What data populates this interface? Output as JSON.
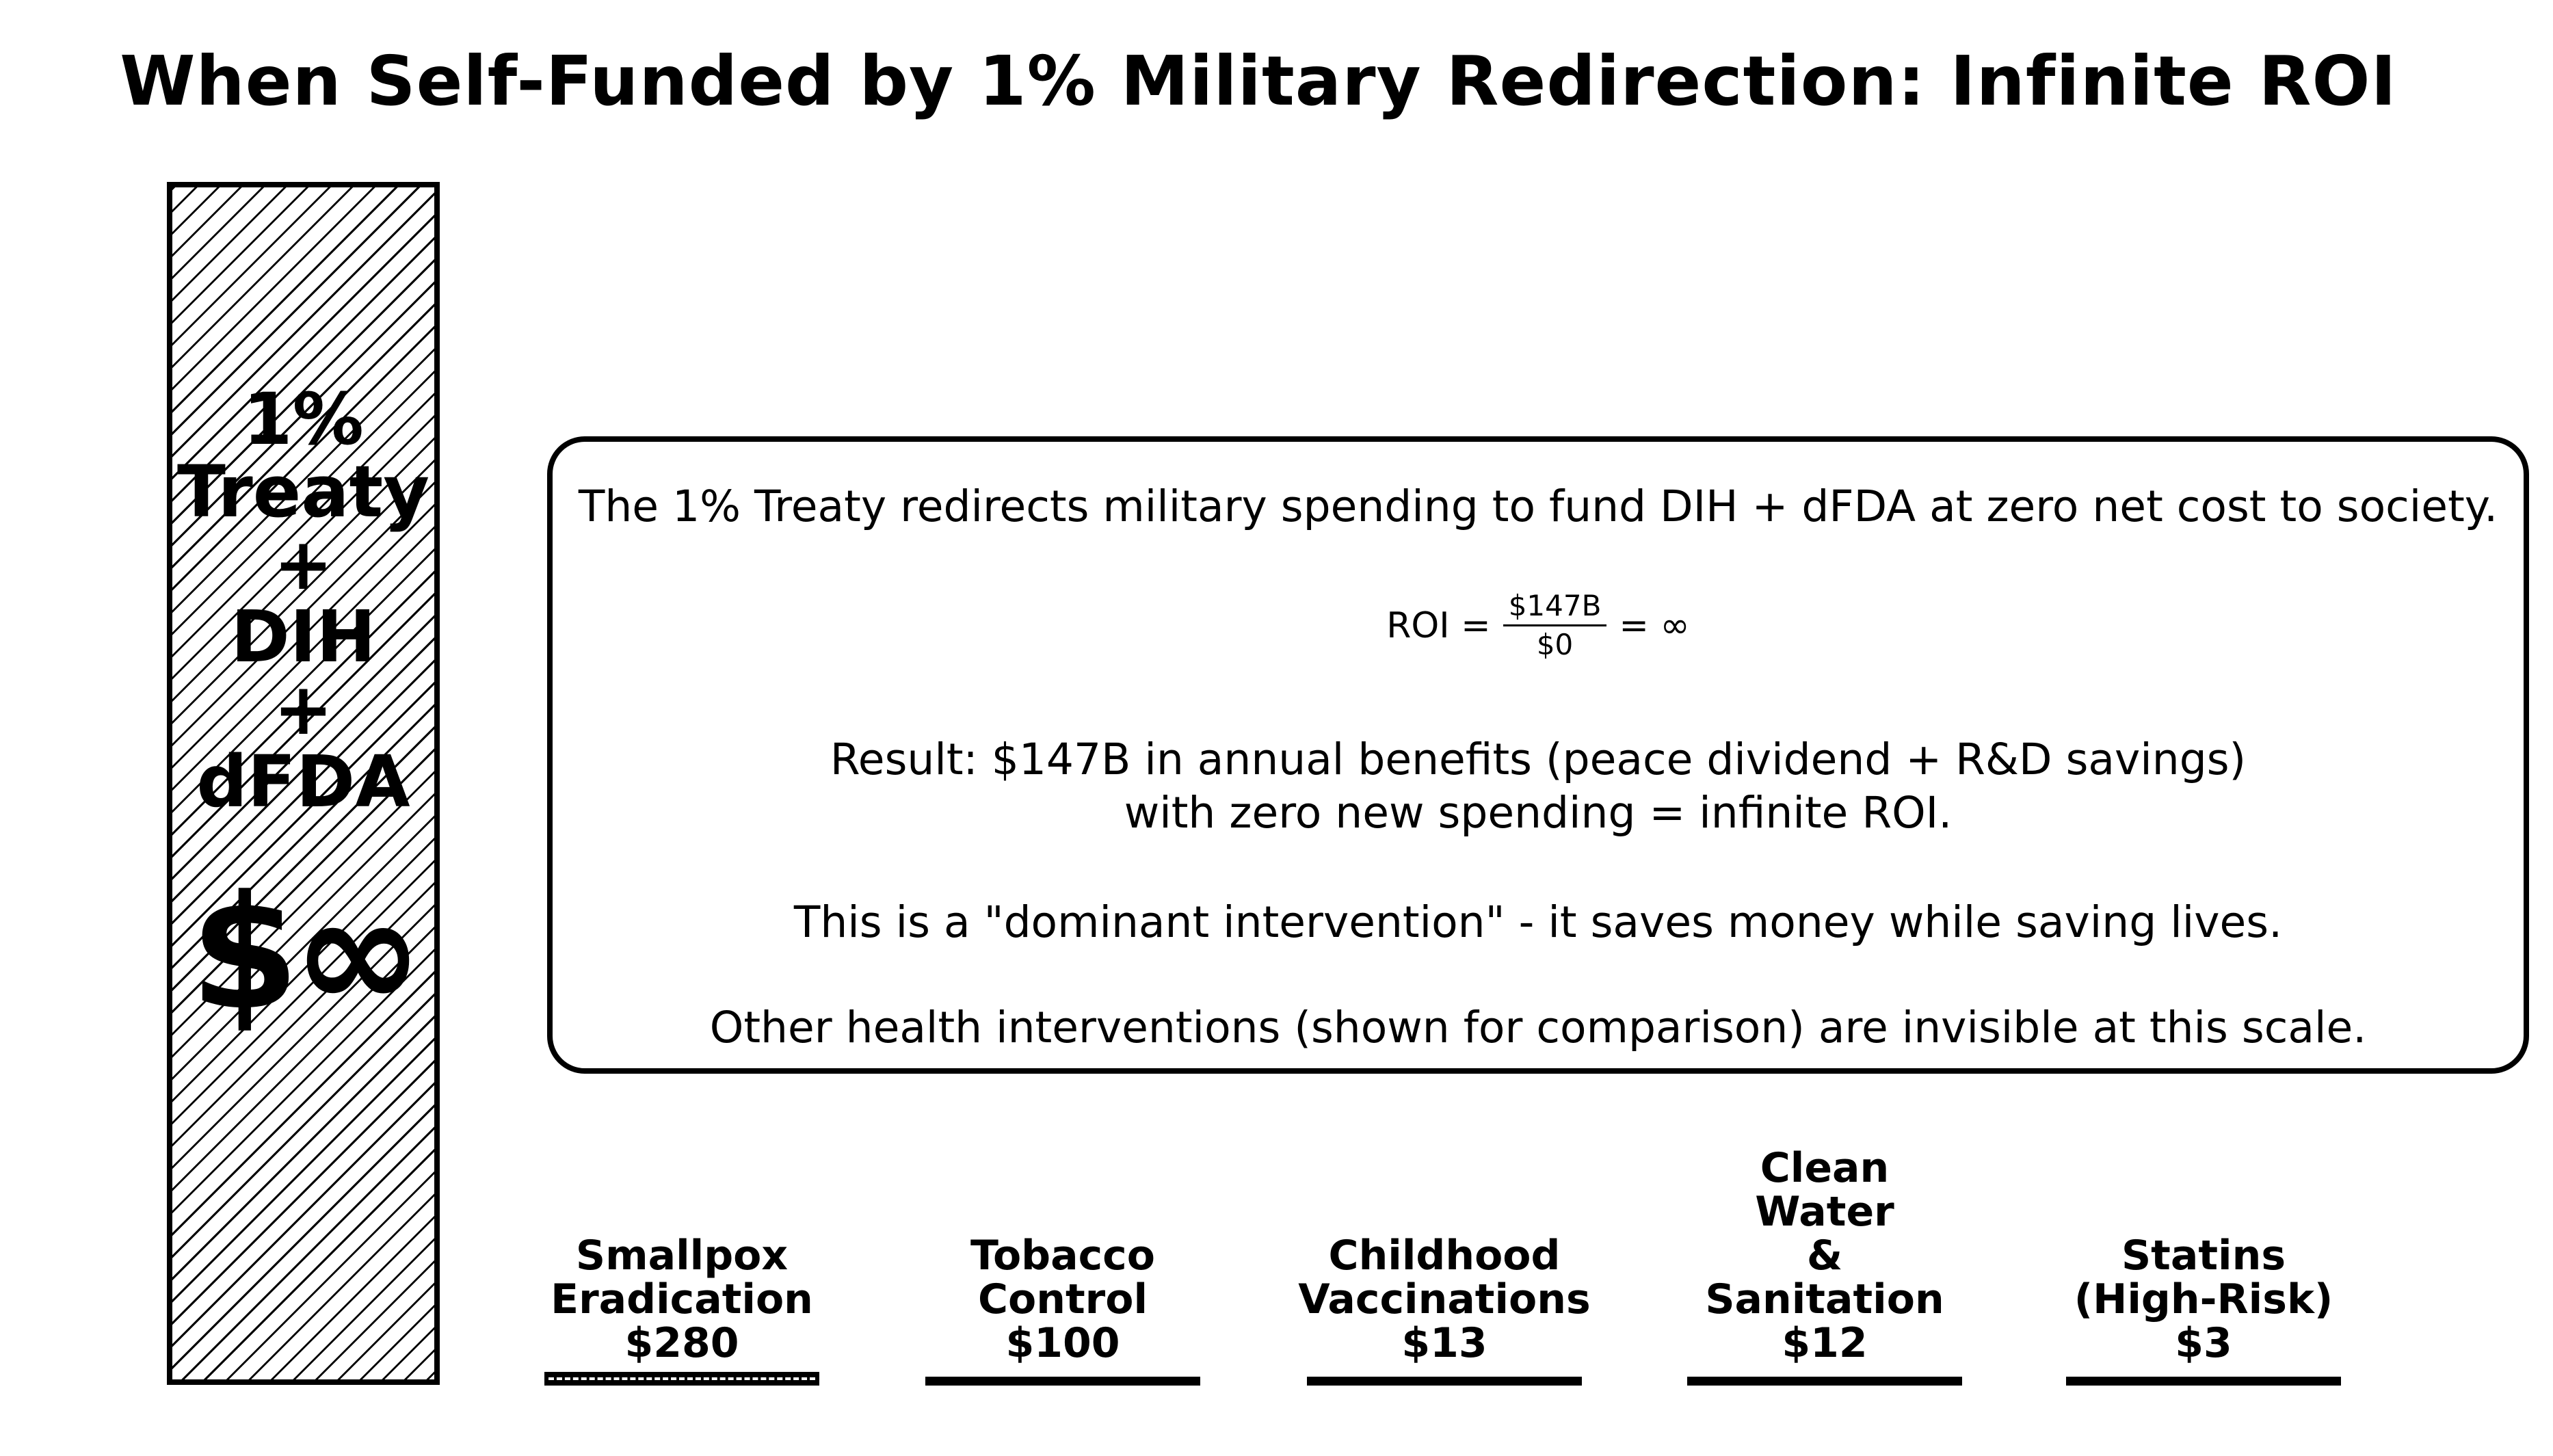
{
  "title": "When Self-Funded by 1% Military Redirection: Infinite ROI",
  "main_bar": {
    "label_lines": [
      "1%",
      "Treaty",
      "+",
      "DIH",
      "+",
      "dFDA"
    ],
    "value_label": "$∞"
  },
  "annotation_box": {
    "line1": "The 1% Treaty redirects military spending to fund DIH + dFDA at zero net cost to society.",
    "formula": {
      "lhs": "ROI =",
      "numerator": "$147B",
      "denominator": "$0",
      "rhs": "= ∞"
    },
    "result_line1": "Result: $147B in annual benefits (peace dividend + R&D savings)",
    "result_line2": "with zero new spending = infinite ROI.",
    "dominant_line": "This is a \"dominant intervention\" - it saves money while saving lives.",
    "comparison_line": "Other health interventions (shown for comparison) are invisible at this scale."
  },
  "comparison_bars": [
    {
      "label_lines": [
        "Smallpox",
        "Eradication",
        "$280"
      ],
      "value": 280,
      "value_label": "$280",
      "hatched": true
    },
    {
      "label_lines": [
        "Tobacco",
        "Control",
        "$100"
      ],
      "value": 100,
      "value_label": "$100",
      "hatched": false
    },
    {
      "label_lines": [
        "Childhood",
        "Vaccinations",
        "$13"
      ],
      "value": 13,
      "value_label": "$13",
      "hatched": false
    },
    {
      "label_lines": [
        "Clean",
        "Water",
        "&",
        "Sanitation",
        "$12"
      ],
      "value": 12,
      "value_label": "$12",
      "hatched": false
    },
    {
      "label_lines": [
        "Statins",
        "(High-Risk)",
        "$3"
      ],
      "value": 3,
      "value_label": "$3",
      "hatched": false
    }
  ],
  "style": {
    "ink": "#000000",
    "paper": "#ffffff"
  },
  "chart_data": {
    "type": "bar",
    "title": "When Self-Funded by 1% Military Redirection: Infinite ROI",
    "categories": [
      "1% Treaty + DIH + dFDA",
      "Smallpox Eradication",
      "Tobacco Control",
      "Childhood Vaccinations",
      "Clean Water & Sanitation",
      "Statins (High-Risk)"
    ],
    "values": [
      null,
      280,
      100,
      13,
      12,
      3
    ],
    "value_labels": [
      "$∞",
      "$280",
      "$100",
      "$13",
      "$12",
      "$3"
    ],
    "xlabel": "",
    "ylabel": "",
    "grid": false,
    "legend": false,
    "notes": [
      "The 1% Treaty redirects military spending to fund DIH + dFDA at zero net cost to society.",
      "ROI = $147B / $0 = ∞",
      "Result: $147B in annual benefits (peace dividend + R&D savings) with zero new spending = infinite ROI.",
      "This is a \"dominant intervention\" - it saves money while saving lives.",
      "Other health interventions (shown for comparison) are invisible at this scale."
    ],
    "annotations": {
      "annual_benefits": "$147B",
      "new_spending": "$0",
      "roi": "infinite"
    }
  }
}
